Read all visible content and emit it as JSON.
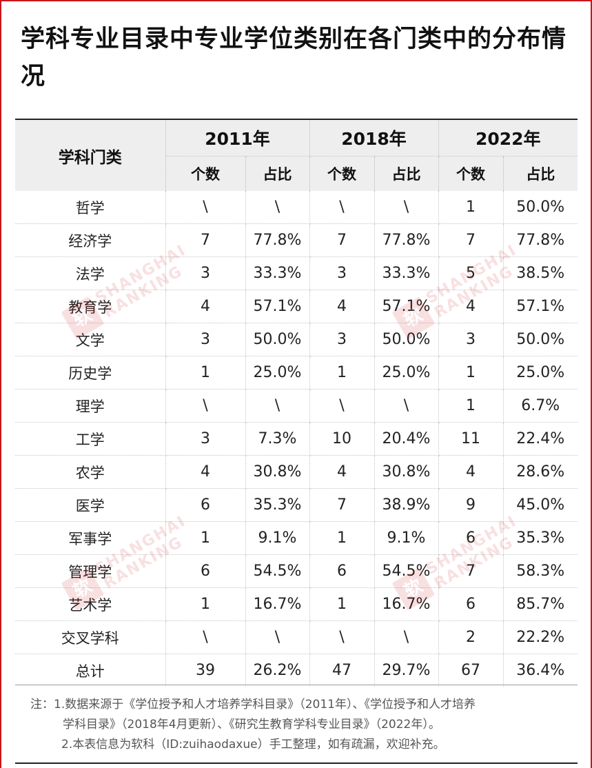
{
  "title": "学科专业目录中专业学位类别在各门类中的分布情况",
  "table": {
    "category_header": "学科门类",
    "years": [
      "2011年",
      "2018年",
      "2022年"
    ],
    "count_label": "个数",
    "ratio_label": "占比",
    "rows": [
      [
        "哲学",
        "\\",
        "\\",
        "\\",
        "\\",
        "1",
        "50.0%"
      ],
      [
        "经济学",
        "7",
        "77.8%",
        "7",
        "77.8%",
        "7",
        "77.8%"
      ],
      [
        "法学",
        "3",
        "33.3%",
        "3",
        "33.3%",
        "5",
        "38.5%"
      ],
      [
        "教育学",
        "4",
        "57.1%",
        "4",
        "57.1%",
        "4",
        "57.1%"
      ],
      [
        "文学",
        "3",
        "50.0%",
        "3",
        "50.0%",
        "3",
        "50.0%"
      ],
      [
        "历史学",
        "1",
        "25.0%",
        "1",
        "25.0%",
        "1",
        "25.0%"
      ],
      [
        "理学",
        "\\",
        "\\",
        "\\",
        "\\",
        "1",
        "6.7%"
      ],
      [
        "工学",
        "3",
        "7.3%",
        "10",
        "20.4%",
        "11",
        "22.4%"
      ],
      [
        "农学",
        "4",
        "30.8%",
        "4",
        "30.8%",
        "4",
        "28.6%"
      ],
      [
        "医学",
        "6",
        "35.3%",
        "7",
        "38.9%",
        "9",
        "45.0%"
      ],
      [
        "军事学",
        "1",
        "9.1%",
        "1",
        "9.1%",
        "6",
        "35.3%"
      ],
      [
        "管理学",
        "6",
        "54.5%",
        "6",
        "54.5%",
        "7",
        "58.3%"
      ],
      [
        "艺术学",
        "1",
        "16.7%",
        "1",
        "16.7%",
        "6",
        "85.7%"
      ],
      [
        "交叉学科",
        "\\",
        "\\",
        "\\",
        "\\",
        "2",
        "22.2%"
      ],
      [
        "总计",
        "39",
        "26.2%",
        "47",
        "29.7%",
        "67",
        "36.4%"
      ]
    ]
  },
  "notes": {
    "line1": "注：1.数据来源于《学位授予和人才培养学科目录》（2011年）、《学位授予和人才培养",
    "line2": "学科目录》（2018年4月更新）、《研究生教育学科专业目录》（2022年）。",
    "line3": "2.本表信息为软科（ID:zuihaodaxue）手工整理，如有疏漏，欢迎补充。"
  },
  "watermark": {
    "badge_text": "软",
    "line1": "SHANGHAI",
    "line2": "RANKING"
  },
  "colors": {
    "brand_red": "#c8161d",
    "header_bg": "#eeeeee"
  }
}
